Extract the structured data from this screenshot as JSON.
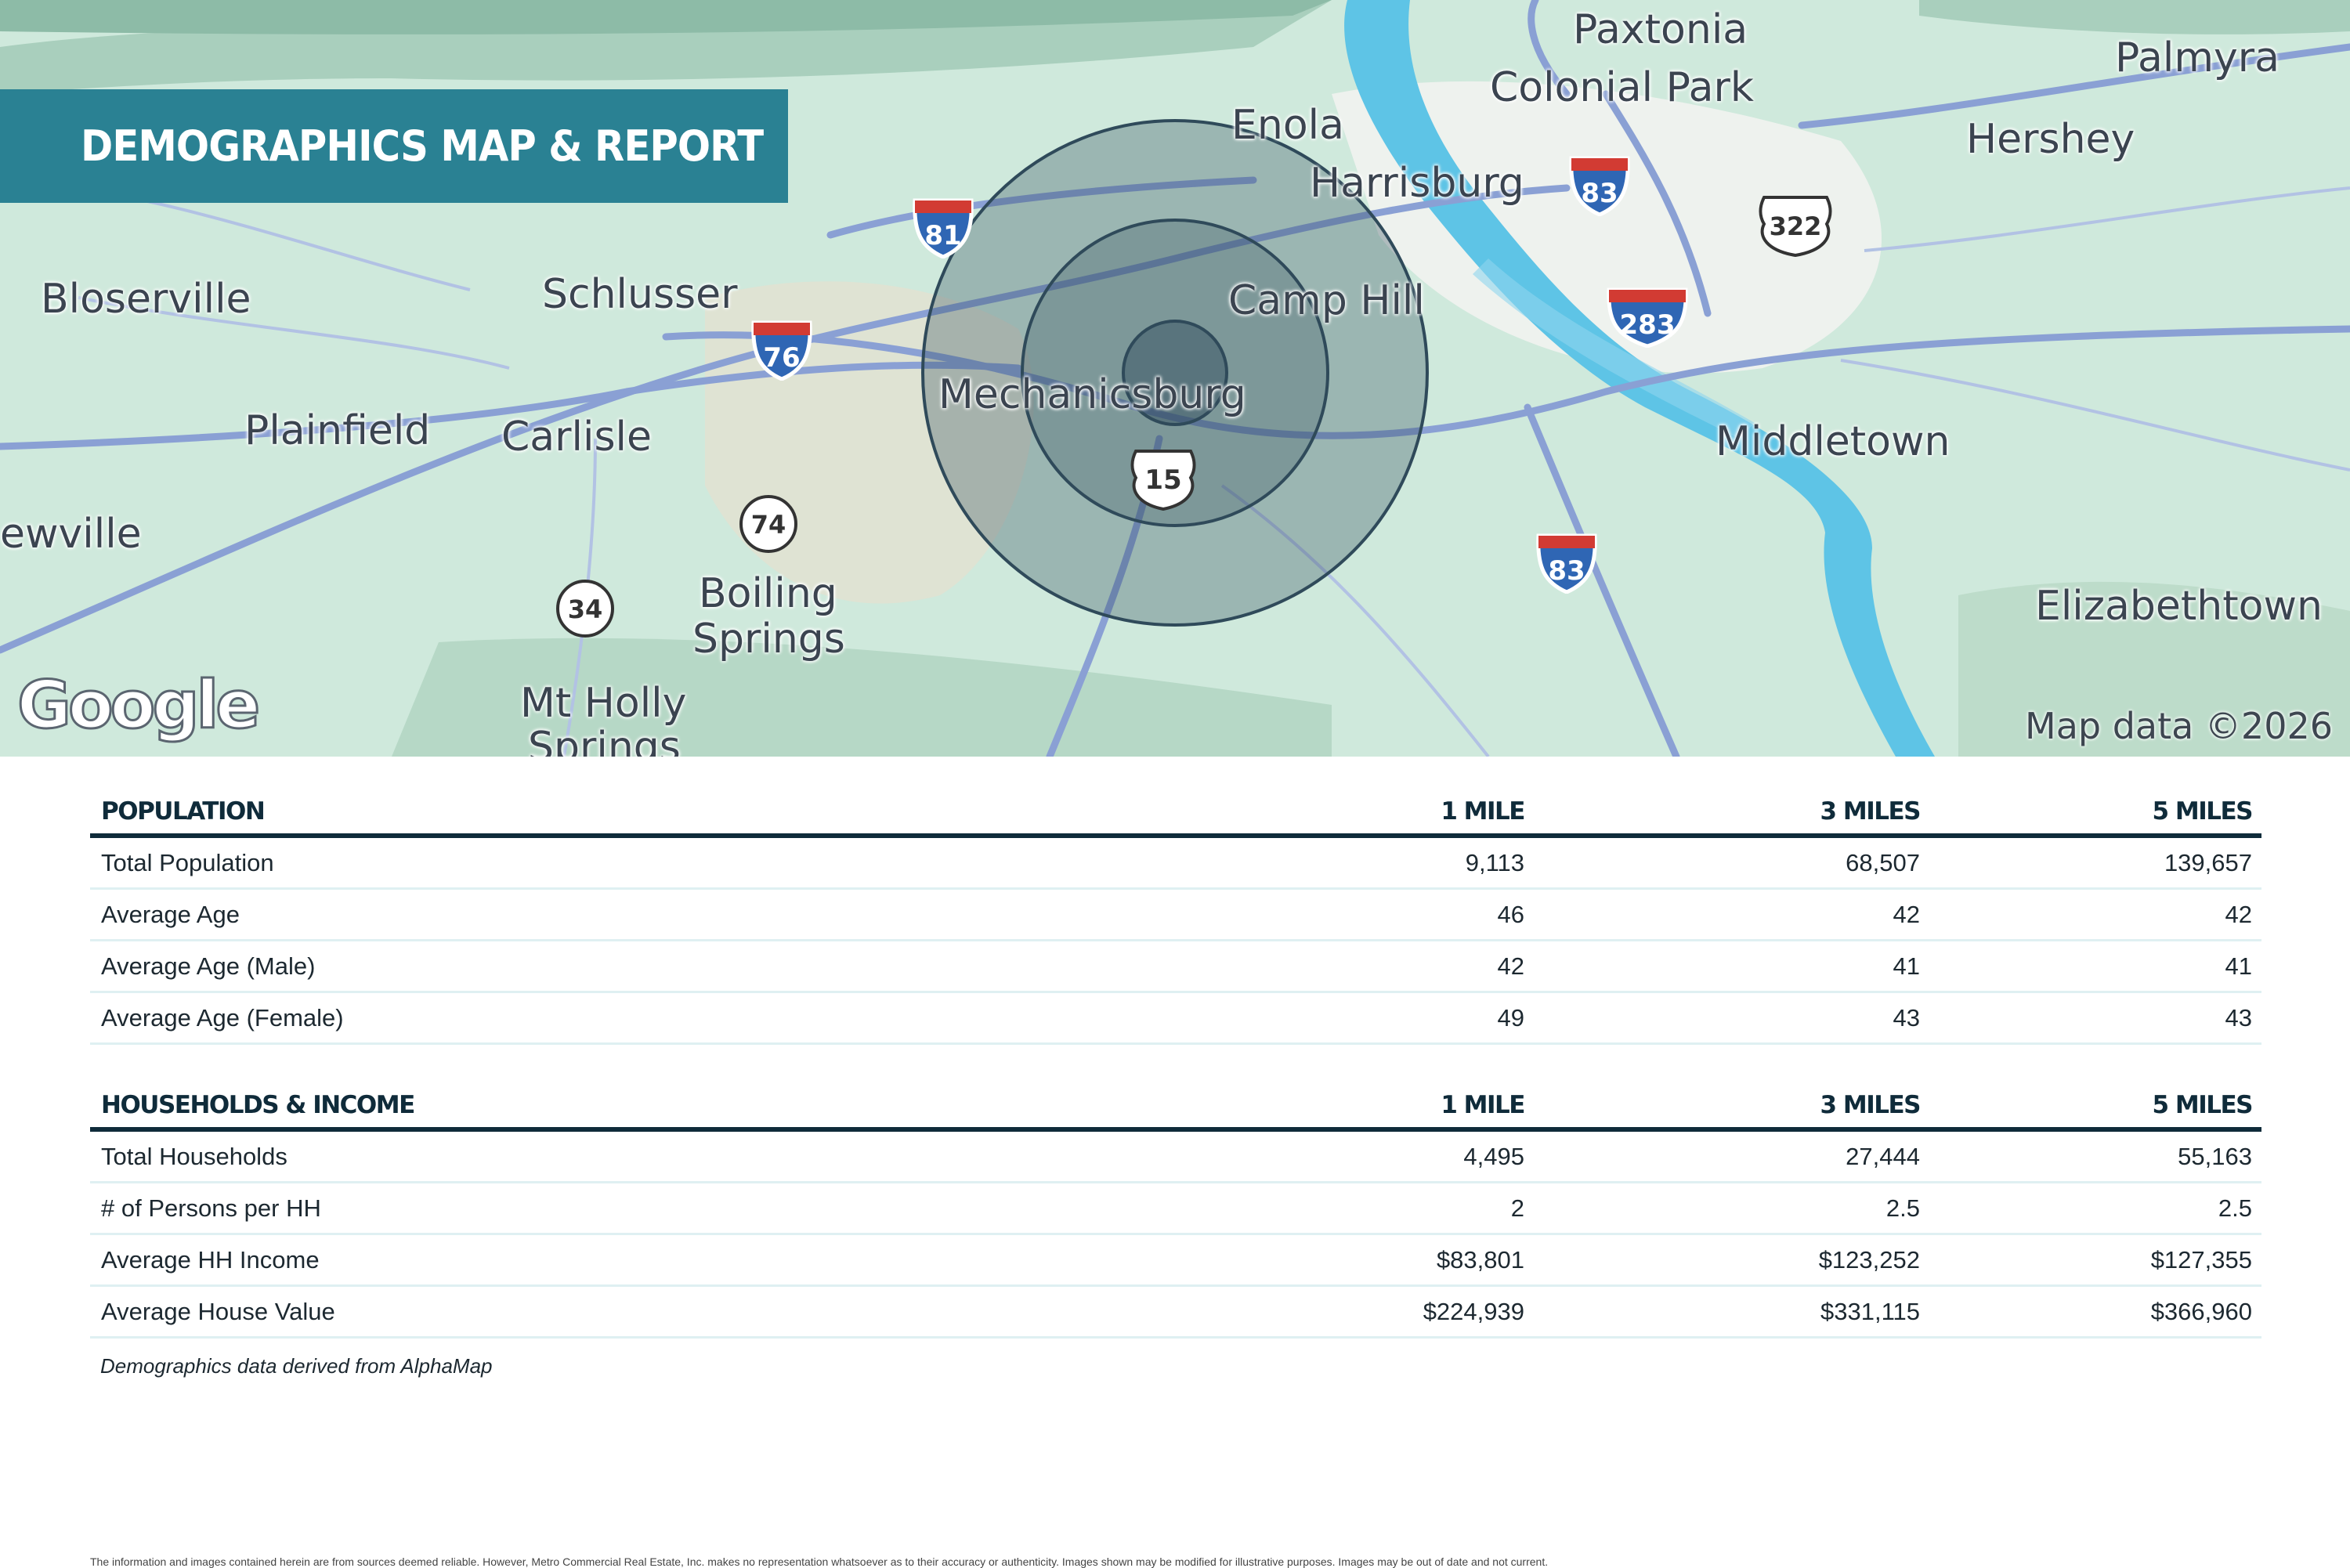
{
  "header": {
    "title": "DEMOGRAPHICS MAP & REPORT"
  },
  "map": {
    "places": {
      "paxtonia": "Paxtonia",
      "colonial_park": "Colonial Park",
      "palmyra": "Palmyra",
      "enola": "Enola",
      "harrisburg": "Harrisburg",
      "hershey": "Hershey",
      "bloserville": "Bloserville",
      "schlusser": "Schlusser",
      "camp_hill": "Camp Hill",
      "mechanicsburg": "Mechanicsburg",
      "plainfield": "Plainfield",
      "carlisle": "Carlisle",
      "middletown": "Middletown",
      "newville": "ewville",
      "boiling_springs_1": "Boiling",
      "boiling_springs_2": "Springs",
      "elizabethtown": "Elizabethtown",
      "mt_holly_1": "Mt Holly",
      "mt_holly_2": "Springs"
    },
    "shields": {
      "i81": "81",
      "i76": "76",
      "i83_north": "83",
      "i283": "283",
      "i83_south": "83",
      "us322": "322",
      "us15": "15",
      "pa74": "74",
      "pa34": "34"
    },
    "logo": "Google",
    "credit": "Map data ©2026",
    "colors": {
      "water": "#5ec4e6",
      "land": "#cfe9dc",
      "road": "#8aa0d4",
      "radius": "#2f4a5a",
      "banner": "#2a8193"
    }
  },
  "population": {
    "heading": "POPULATION",
    "columns": [
      "1 MILE",
      "3 MILES",
      "5 MILES"
    ],
    "rows": [
      {
        "label": "Total Population",
        "values": [
          "9,113",
          "68,507",
          "139,657"
        ]
      },
      {
        "label": "Average Age",
        "values": [
          "46",
          "42",
          "42"
        ]
      },
      {
        "label": "Average Age (Male)",
        "values": [
          "42",
          "41",
          "41"
        ]
      },
      {
        "label": "Average Age (Female)",
        "values": [
          "49",
          "43",
          "43"
        ]
      }
    ]
  },
  "households": {
    "heading": "HOUSEHOLDS & INCOME",
    "columns": [
      "1 MILE",
      "3 MILES",
      "5 MILES"
    ],
    "rows": [
      {
        "label": "Total Households",
        "values": [
          "4,495",
          "27,444",
          "55,163"
        ]
      },
      {
        "label": "# of Persons per HH",
        "values": [
          "2",
          "2.5",
          "2.5"
        ]
      },
      {
        "label": "Average HH Income",
        "values": [
          "$83,801",
          "$123,252",
          "$127,355"
        ]
      },
      {
        "label": "Average House Value",
        "values": [
          "$224,939",
          "$331,115",
          "$366,960"
        ]
      }
    ]
  },
  "footnote": "Demographics data derived from AlphaMap",
  "disclaimer": "The information and images contained herein are from sources deemed reliable. However, Metro Commercial Real Estate, Inc. makes no representation whatsoever as to their accuracy or authenticity. Images shown may be modified for illustrative purposes. Images may be out of date and not current."
}
